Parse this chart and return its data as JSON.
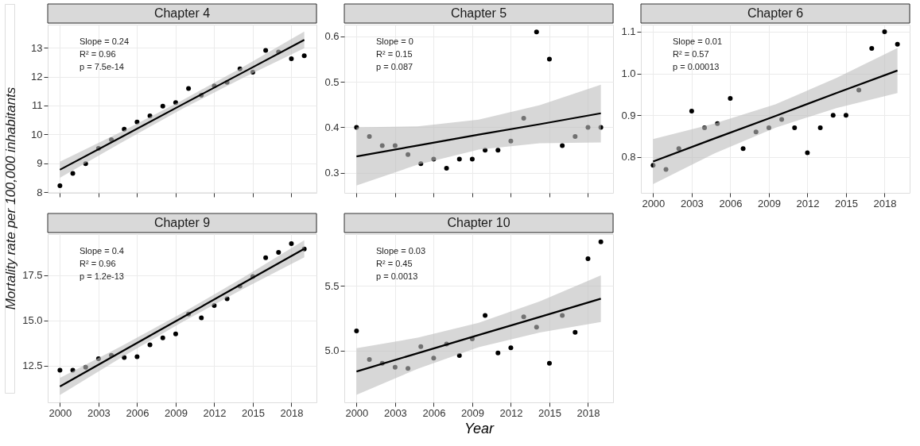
{
  "chart_data": [
    {
      "type": "scatter",
      "title": "Chapter 4",
      "ylabel": "Mortality rate per 100,000 inhabitants",
      "grid": true,
      "tick_labels": "y",
      "annotations": [
        "Slope = 0.24",
        "R² = 0.96",
        "p = 7.5e-14"
      ],
      "xlim": [
        1999.05,
        2019.95
      ],
      "xticks": [
        2000,
        2003,
        2006,
        2009,
        2012,
        2015,
        2018
      ],
      "ylim": [
        7.98,
        13.8
      ],
      "yticks": [
        8,
        9,
        10,
        11,
        12,
        13
      ],
      "series": [
        {
          "marker": "circle",
          "color": "#000000",
          "x": [
            2000,
            2001,
            2002,
            2003,
            2004,
            2005,
            2006,
            2007,
            2008,
            2009,
            2010,
            2011,
            2012,
            2013,
            2014,
            2015,
            2016,
            2017,
            2018,
            2019
          ],
          "values": [
            8.23,
            8.65,
            8.99,
            9.52,
            9.82,
            10.18,
            10.43,
            10.64,
            10.98,
            11.1,
            11.59,
            11.36,
            11.68,
            11.8,
            12.27,
            12.15,
            12.91,
            12.85,
            12.62,
            12.72
          ]
        },
        {
          "type": "line",
          "marker": "none",
          "color": "#000000",
          "x": [
            2000,
            2004.75,
            2009.5,
            2014.25,
            2019
          ],
          "values": [
            8.78,
            9.9,
            11.03,
            12.15,
            13.27
          ],
          "lower": [
            8.5,
            9.71,
            10.88,
            11.96,
            12.98
          ],
          "upper": [
            9.06,
            10.09,
            11.18,
            12.34,
            13.56
          ]
        }
      ]
    },
    {
      "type": "scatter",
      "title": "Chapter 5",
      "grid": true,
      "tick_labels": "y",
      "annotations": [
        "Slope = 0",
        "R² = 0.15",
        "p = 0.087"
      ],
      "xlim": [
        1999.05,
        2019.95
      ],
      "xticks": [
        2000,
        2003,
        2006,
        2009,
        2012,
        2015,
        2018
      ],
      "ylim": [
        0.256,
        0.626
      ],
      "yticks": [
        0.3,
        0.4,
        0.5,
        0.6
      ],
      "series": [
        {
          "marker": "circle",
          "color": "#000000",
          "x": [
            2000,
            2001,
            2002,
            2003,
            2004,
            2005,
            2006,
            2007,
            2008,
            2009,
            2010,
            2011,
            2012,
            2013,
            2014,
            2015,
            2016,
            2017,
            2018,
            2019
          ],
          "values": [
            0.4,
            0.38,
            0.36,
            0.36,
            0.34,
            0.32,
            0.33,
            0.31,
            0.33,
            0.33,
            0.35,
            0.35,
            0.37,
            0.42,
            0.61,
            0.55,
            0.36,
            0.38,
            0.4,
            0.4
          ]
        },
        {
          "type": "line",
          "marker": "none",
          "color": "#000000",
          "x": [
            2000,
            2004.75,
            2009.5,
            2014.25,
            2019
          ],
          "values": [
            0.336,
            0.36,
            0.384,
            0.407,
            0.431
          ],
          "lower": [
            0.272,
            0.318,
            0.351,
            0.365,
            0.367
          ],
          "upper": [
            0.4,
            0.402,
            0.417,
            0.449,
            0.494
          ]
        }
      ]
    },
    {
      "type": "scatter",
      "title": "Chapter 6",
      "grid": true,
      "annotations": [
        "Slope = 0.01",
        "R² = 0.57",
        "p = 0.00013"
      ],
      "xlim": [
        1999.05,
        2019.95
      ],
      "xticks": [
        2000,
        2003,
        2006,
        2009,
        2012,
        2015,
        2018
      ],
      "ylim": [
        0.714,
        1.117
      ],
      "yticks": [
        0.8,
        0.9,
        {
          "value": 1,
          "label": "1.0"
        },
        1.1
      ],
      "series": [
        {
          "marker": "circle",
          "color": "#000000",
          "x": [
            2000,
            2001,
            2002,
            2003,
            2004,
            2005,
            2006,
            2007,
            2008,
            2009,
            2010,
            2011,
            2012,
            2013,
            2014,
            2015,
            2016,
            2017,
            2018,
            2019
          ],
          "values": [
            0.78,
            0.77,
            0.82,
            0.91,
            0.87,
            0.88,
            0.94,
            0.82,
            0.86,
            0.87,
            0.89,
            0.87,
            0.81,
            0.87,
            0.9,
            0.9,
            0.96,
            1.06,
            1.1,
            1.07
          ]
        },
        {
          "type": "line",
          "marker": "none",
          "color": "#000000",
          "x": [
            2000,
            2004.75,
            2009.5,
            2014.25,
            2019
          ],
          "values": [
            0.789,
            0.844,
            0.898,
            0.953,
            1.007
          ],
          "lower": [
            0.735,
            0.808,
            0.87,
            0.917,
            0.953
          ],
          "upper": [
            0.843,
            0.88,
            0.926,
            0.989,
            1.061
          ]
        }
      ]
    },
    {
      "type": "scatter",
      "title": "Chapter 9",
      "grid": true,
      "annotations": [
        "Slope = 0.4",
        "R² = 0.96",
        "p = 1.2e-13"
      ],
      "xlim": [
        1999.05,
        2019.95
      ],
      "xticks": [
        2000,
        2003,
        2006,
        2009,
        2012,
        2015,
        2018
      ],
      "ylim": [
        10.46,
        19.77
      ],
      "yticks": [
        12.5,
        {
          "value": 15,
          "label": "15.0"
        },
        17.5
      ],
      "series": [
        {
          "marker": "circle",
          "color": "#000000",
          "x": [
            2000,
            2001,
            2002,
            2003,
            2004,
            2005,
            2006,
            2007,
            2008,
            2009,
            2010,
            2011,
            2012,
            2013,
            2014,
            2015,
            2016,
            2017,
            2018,
            2019
          ],
          "values": [
            12.24,
            12.24,
            12.4,
            12.87,
            13.06,
            12.94,
            12.99,
            13.64,
            14.03,
            14.25,
            15.35,
            15.14,
            15.82,
            16.19,
            16.89,
            17.42,
            18.46,
            18.76,
            19.24,
            18.95
          ]
        },
        {
          "type": "line",
          "marker": "none",
          "color": "#000000",
          "x": [
            2000,
            2004.75,
            2009.5,
            2014.25,
            2019
          ],
          "values": [
            11.34,
            13.25,
            15.15,
            17.06,
            18.96
          ],
          "lower": [
            10.87,
            12.93,
            14.9,
            16.74,
            18.49
          ],
          "upper": [
            11.81,
            13.56,
            15.4,
            17.37,
            19.43
          ]
        }
      ]
    },
    {
      "type": "scatter",
      "title": "Chapter 10",
      "xlabel": "Year",
      "grid": true,
      "annotations": [
        "Slope = 0.03",
        "R² = 0.45",
        "p = 0.0013"
      ],
      "xlim": [
        1999.05,
        2019.95
      ],
      "xticks": [
        2000,
        2003,
        2006,
        2009,
        2012,
        2015,
        2018
      ],
      "ylim": [
        4.598,
        5.9
      ],
      "yticks": [
        {
          "value": 5,
          "label": "5.0"
        },
        5.5
      ],
      "series": [
        {
          "marker": "circle",
          "color": "#000000",
          "x": [
            2000,
            2001,
            2002,
            2003,
            2004,
            2005,
            2006,
            2007,
            2008,
            2009,
            2010,
            2011,
            2012,
            2013,
            2014,
            2015,
            2016,
            2017,
            2018,
            2019
          ],
          "values": [
            5.15,
            4.93,
            4.9,
            4.87,
            4.86,
            5.03,
            4.94,
            5.05,
            4.96,
            5.09,
            5.27,
            4.98,
            5.02,
            5.26,
            5.18,
            4.9,
            5.27,
            5.14,
            5.71,
            5.84
          ]
        },
        {
          "type": "line",
          "marker": "none",
          "color": "#000000",
          "x": [
            2000,
            2004.75,
            2009.5,
            2014.25,
            2019
          ],
          "values": [
            4.837,
            4.978,
            5.119,
            5.259,
            5.4
          ],
          "lower": [
            4.657,
            4.858,
            5.025,
            5.139,
            5.22
          ],
          "upper": [
            5.017,
            5.098,
            5.213,
            5.379,
            5.58
          ]
        }
      ]
    }
  ]
}
